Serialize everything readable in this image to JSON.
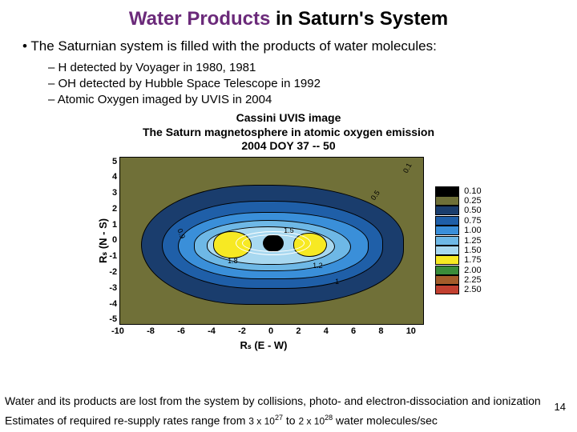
{
  "title_prefix": "Water Products",
  "title_suffix": " in Saturn's System",
  "bullet1": "The Saturnian system is filled with the products of water molecules:",
  "sub_bullets": [
    "H detected by Voyager in 1980, 1981",
    "OH detected by Hubble Space Telescope in 1992",
    "Atomic Oxygen imaged by UVIS in 2004"
  ],
  "figure": {
    "title_l1": "Cassini UVIS image",
    "title_l2": "The Saturn magnetosphere in atomic oxygen emission",
    "title_l3": "2004 DOY 37 -- 50",
    "ylabel": "Rₛ (N - S)",
    "xlabel": "Rₛ (E - W)",
    "yticks": [
      "5",
      "4",
      "3",
      "2",
      "1",
      "0",
      "-1",
      "-2",
      "-3",
      "-4",
      "-5"
    ],
    "xticks": [
      "-10",
      "-8",
      "-6",
      "-4",
      "-2",
      "0",
      "2",
      "4",
      "6",
      "8",
      "10"
    ],
    "colorbar": [
      {
        "c": "#000000",
        "v": "0.10"
      },
      {
        "c": "#6f7038",
        "v": "0.25"
      },
      {
        "c": "#1a3d6d",
        "v": "0.50"
      },
      {
        "c": "#1f5fa8",
        "v": "0.75"
      },
      {
        "c": "#3a8fd9",
        "v": "1.00"
      },
      {
        "c": "#6eb8e6",
        "v": "1.25"
      },
      {
        "c": "#a8d8f0",
        "v": "1.50"
      },
      {
        "c": "#f7e923",
        "v": "1.75"
      },
      {
        "c": "#3a8c3a",
        "v": "2.00"
      },
      {
        "c": "#a35c2a",
        "v": "2.25"
      },
      {
        "c": "#c24030",
        "v": "2.50"
      }
    ],
    "annotations": [
      "0.1",
      "0.5",
      "0.9",
      "1",
      "1.2",
      "1.5",
      "1.8"
    ],
    "bg_color": "#707038",
    "blue_dark": "#1a3d6d",
    "blue_mid": "#1f5fa8",
    "blue_light": "#3a8fd9",
    "blue_vlight": "#6eb8e6",
    "blue_pale": "#a8d8f0",
    "yellow": "#f7e923",
    "saturn_fill": "#ffffff"
  },
  "bottom1": "Water and its products are lost from the system by collisions, photo- and electron-dissociation and ionization",
  "bottom2_a": "Estimates of required re-supply rates range from ",
  "bottom2_b": "3 x 10",
  "bottom2_exp1": "27",
  "bottom2_c": " to ",
  "bottom2_d": "2 x 10",
  "bottom2_exp2": "28",
  "bottom2_e": " water molecules/sec",
  "pagenum": "14"
}
